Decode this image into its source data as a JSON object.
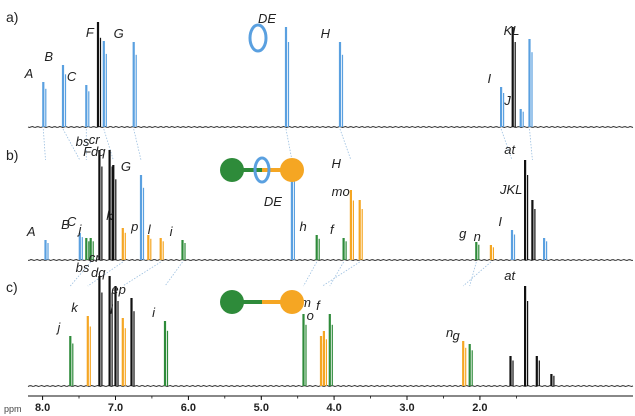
{
  "chart_data": {
    "type": "line",
    "title": "",
    "xlabel": "ppm",
    "ylabel": "",
    "xlim": [
      8.2,
      -0.1
    ],
    "x_reversed": true,
    "xticks": [
      8.0,
      7.0,
      6.0,
      5.0,
      4.0,
      3.0,
      2.0
    ],
    "xtick_labels": [
      "8.0",
      "7.0",
      "6.0",
      "5.0",
      "4.0",
      "3.0",
      "2.0"
    ],
    "grid": false,
    "colors": {
      "blue": "#5aa0e0",
      "green": "#2e8b3a",
      "orange": "#f5a623",
      "black": "#111111",
      "guide": "#9bbfe0"
    },
    "panels": [
      {
        "label": "a)",
        "molecule": "ring",
        "peaks": [
          {
            "x": 7.99,
            "h": 0.45,
            "c": "blue",
            "label": "A",
            "lx": 7.99,
            "ly": 0.45
          },
          {
            "x": 7.72,
            "h": 0.62,
            "c": "blue",
            "label": "B",
            "lx": 7.72,
            "ly": 0.62
          },
          {
            "x": 7.4,
            "h": 0.42,
            "c": "blue",
            "label": "C",
            "lx": 7.4,
            "ly": 0.42
          },
          {
            "x": 7.24,
            "h": 1.05,
            "c": "black"
          },
          {
            "x": 7.16,
            "h": 0.86,
            "c": "blue",
            "label": "F",
            "lx": 7.16,
            "ly": 0.86
          },
          {
            "x": 6.75,
            "h": 0.85,
            "c": "blue",
            "label": "G",
            "lx": 6.75,
            "ly": 0.85
          },
          {
            "x": 4.66,
            "h": 1.0,
            "c": "blue",
            "label": "DE",
            "lx": 4.66,
            "ly": 1.0
          },
          {
            "x": 3.92,
            "h": 0.85,
            "c": "blue",
            "label": "H",
            "lx": 3.92,
            "ly": 0.85
          },
          {
            "x": 1.71,
            "h": 0.4,
            "c": "blue",
            "label": "I",
            "lx": 1.71,
            "ly": 0.4
          },
          {
            "x": 1.55,
            "h": 1.0,
            "c": "black"
          },
          {
            "x": 1.44,
            "h": 0.18,
            "c": "blue",
            "label": "J",
            "lx": 1.44,
            "ly": 0.18
          },
          {
            "x": 1.32,
            "h": 0.88,
            "c": "blue",
            "label": "KL",
            "lx": 1.32,
            "ly": 0.88
          }
        ]
      },
      {
        "label": "b)",
        "molecule": "rotaxane",
        "peaks": [
          {
            "x": 7.96,
            "h": 0.2,
            "c": "blue",
            "label": "A",
            "lx": 7.96,
            "ly": 0.2
          },
          {
            "x": 7.49,
            "h": 0.27,
            "c": "blue",
            "label": "B",
            "lx": 7.49,
            "ly": 0.27
          },
          {
            "x": 7.4,
            "h": 0.22,
            "c": "green",
            "label": "C",
            "lx": 7.4,
            "ly": 0.3
          },
          {
            "x": 7.34,
            "h": 0.22,
            "c": "green",
            "label": "j",
            "lx": 7.33,
            "ly": 0.22
          },
          {
            "x": 7.22,
            "h": 1.1,
            "c": "black",
            "label": "bs",
            "lx": 7.22,
            "ly": 1.1
          },
          {
            "x": 7.08,
            "h": 1.1,
            "c": "black",
            "label": "cr",
            "lx": 7.08,
            "ly": 1.12
          },
          {
            "x": 7.03,
            "h": 0.95,
            "c": "black",
            "label": "Fdq",
            "lx": 7.0,
            "ly": 1.0
          },
          {
            "x": 6.9,
            "h": 0.32,
            "c": "orange",
            "label": "k",
            "lx": 6.9,
            "ly": 0.36
          },
          {
            "x": 6.65,
            "h": 0.85,
            "c": "blue",
            "label": "G",
            "lx": 6.65,
            "ly": 0.85
          },
          {
            "x": 6.55,
            "h": 0.25,
            "c": "orange",
            "label": "p",
            "lx": 6.55,
            "ly": 0.25
          },
          {
            "x": 6.38,
            "h": 0.22,
            "c": "orange",
            "label": "l",
            "lx": 6.38,
            "ly": 0.22
          },
          {
            "x": 6.08,
            "h": 0.2,
            "c": "green",
            "label": "i",
            "lx": 6.08,
            "ly": 0.2
          },
          {
            "x": 4.58,
            "h": 0.98,
            "c": "blue",
            "label": "DE",
            "lx": 4.58,
            "ly": 0.5
          },
          {
            "x": 4.24,
            "h": 0.25,
            "c": "green",
            "label": "h",
            "lx": 4.24,
            "ly": 0.25
          },
          {
            "x": 3.87,
            "h": 0.22,
            "c": "green",
            "label": "f",
            "lx": 3.87,
            "ly": 0.22
          },
          {
            "x": 3.77,
            "h": 0.7,
            "c": "orange",
            "label": "H",
            "lx": 3.77,
            "ly": 0.88
          },
          {
            "x": 3.65,
            "h": 0.6,
            "c": "orange",
            "label": "mo",
            "lx": 3.65,
            "ly": 0.6
          },
          {
            "x": 2.05,
            "h": 0.18,
            "c": "green",
            "label": "g",
            "lx": 2.05,
            "ly": 0.18
          },
          {
            "x": 1.85,
            "h": 0.15,
            "c": "orange",
            "label": "n",
            "lx": 1.85,
            "ly": 0.15
          },
          {
            "x": 1.56,
            "h": 0.3,
            "c": "blue",
            "label": "I",
            "lx": 1.56,
            "ly": 0.3
          },
          {
            "x": 1.38,
            "h": 1.0,
            "c": "black",
            "label": "at",
            "lx": 1.38,
            "ly": 1.02
          },
          {
            "x": 1.28,
            "h": 0.6,
            "c": "black",
            "label": "JKL",
            "lx": 1.28,
            "ly": 0.62
          },
          {
            "x": 1.12,
            "h": 0.22,
            "c": "blue"
          }
        ]
      },
      {
        "label": "c)",
        "molecule": "thread",
        "peaks": [
          {
            "x": 7.62,
            "h": 0.5,
            "c": "green",
            "label": "j",
            "lx": 7.62,
            "ly": 0.5
          },
          {
            "x": 7.38,
            "h": 0.7,
            "c": "orange",
            "label": "k",
            "lx": 7.38,
            "ly": 0.7
          },
          {
            "x": 7.22,
            "h": 1.1,
            "c": "black",
            "label": "bs",
            "lx": 7.22,
            "ly": 1.1
          },
          {
            "x": 7.08,
            "h": 1.1,
            "c": "black",
            "label": "cr",
            "lx": 7.08,
            "ly": 1.2
          },
          {
            "x": 7.0,
            "h": 1.0,
            "c": "black",
            "label": "dq",
            "lx": 7.0,
            "ly": 1.05
          },
          {
            "x": 6.9,
            "h": 0.68,
            "c": "orange",
            "label": "l",
            "lx": 6.9,
            "ly": 0.68
          },
          {
            "x": 6.78,
            "h": 0.88,
            "c": "black",
            "label": "ep",
            "lx": 6.72,
            "ly": 0.88
          },
          {
            "x": 6.32,
            "h": 0.65,
            "c": "green",
            "label": "i",
            "lx": 6.32,
            "ly": 0.65
          },
          {
            "x": 4.42,
            "h": 0.72,
            "c": "green",
            "label": "h",
            "lx": 4.42,
            "ly": 0.72
          },
          {
            "x": 4.18,
            "h": 0.5,
            "c": "orange",
            "label": "m",
            "lx": 4.18,
            "ly": 0.75
          },
          {
            "x": 4.14,
            "h": 0.55,
            "c": "orange",
            "label": "o",
            "lx": 4.14,
            "ly": 0.62
          },
          {
            "x": 4.06,
            "h": 0.72,
            "c": "green",
            "label": "f",
            "lx": 4.06,
            "ly": 0.72
          },
          {
            "x": 2.23,
            "h": 0.45,
            "c": "orange",
            "label": "n",
            "lx": 2.23,
            "ly": 0.45
          },
          {
            "x": 2.14,
            "h": 0.42,
            "c": "green",
            "label": "g",
            "lx": 2.14,
            "ly": 0.42
          },
          {
            "x": 1.58,
            "h": 0.3,
            "c": "black"
          },
          {
            "x": 1.38,
            "h": 1.0,
            "c": "black",
            "label": "at",
            "lx": 1.38,
            "ly": 1.02
          },
          {
            "x": 1.22,
            "h": 0.3,
            "c": "black"
          },
          {
            "x": 1.02,
            "h": 0.12,
            "c": "black"
          }
        ]
      }
    ],
    "correlation_lines": [
      {
        "from": [
          0,
          7.99
        ],
        "to": [
          1,
          7.96
        ]
      },
      {
        "from": [
          0,
          7.72
        ],
        "to": [
          1,
          7.49
        ]
      },
      {
        "from": [
          0,
          7.4
        ],
        "to": [
          1,
          7.4
        ]
      },
      {
        "from": [
          0,
          7.16
        ],
        "to": [
          1,
          7.03
        ]
      },
      {
        "from": [
          0,
          6.75
        ],
        "to": [
          1,
          6.65
        ]
      },
      {
        "from": [
          0,
          4.66
        ],
        "to": [
          1,
          4.58
        ]
      },
      {
        "from": [
          0,
          3.92
        ],
        "to": [
          1,
          3.77
        ]
      },
      {
        "from": [
          0,
          1.71
        ],
        "to": [
          1,
          1.56
        ]
      },
      {
        "from": [
          0,
          1.32
        ],
        "to": [
          1,
          1.28
        ]
      },
      {
        "from": [
          1,
          7.34
        ],
        "to": [
          2,
          7.62
        ]
      },
      {
        "from": [
          1,
          6.9
        ],
        "to": [
          2,
          7.38
        ]
      },
      {
        "from": [
          1,
          6.38
        ],
        "to": [
          2,
          6.9
        ]
      },
      {
        "from": [
          1,
          6.08
        ],
        "to": [
          2,
          6.32
        ]
      },
      {
        "from": [
          1,
          4.24
        ],
        "to": [
          2,
          4.42
        ]
      },
      {
        "from": [
          1,
          3.87
        ],
        "to": [
          2,
          4.06
        ]
      },
      {
        "from": [
          1,
          3.65
        ],
        "to": [
          2,
          4.16
        ]
      },
      {
        "from": [
          1,
          2.05
        ],
        "to": [
          2,
          2.14
        ]
      },
      {
        "from": [
          1,
          1.85
        ],
        "to": [
          2,
          2.23
        ]
      }
    ]
  }
}
